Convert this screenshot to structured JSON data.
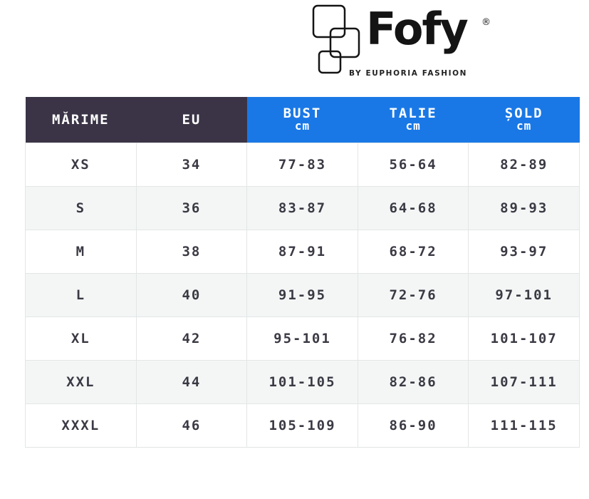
{
  "logo": {
    "brand": "Fofy",
    "registered": "®",
    "tagline": "BY EUPHORIA FASHION"
  },
  "colors": {
    "header_dark": "#3b3446",
    "header_blue": "#1a78e6",
    "row_alt": "#f3f6f5",
    "text": "#3b3a44"
  },
  "table": {
    "headers": [
      {
        "label": "MĂRIME",
        "unit": ""
      },
      {
        "label": "EU",
        "unit": ""
      },
      {
        "label": "BUST",
        "unit": "cm"
      },
      {
        "label": "TALIE",
        "unit": "cm"
      },
      {
        "label": "ȘOLD",
        "unit": "cm"
      }
    ],
    "rows": [
      [
        "XS",
        "34",
        "77-83",
        "56-64",
        "82-89"
      ],
      [
        "S",
        "36",
        "83-87",
        "64-68",
        "89-93"
      ],
      [
        "M",
        "38",
        "87-91",
        "68-72",
        "93-97"
      ],
      [
        "L",
        "40",
        "91-95",
        "72-76",
        "97-101"
      ],
      [
        "XL",
        "42",
        "95-101",
        "76-82",
        "101-107"
      ],
      [
        "XXL",
        "44",
        "101-105",
        "82-86",
        "107-111"
      ],
      [
        "XXXL",
        "46",
        "105-109",
        "86-90",
        "111-115"
      ]
    ]
  }
}
